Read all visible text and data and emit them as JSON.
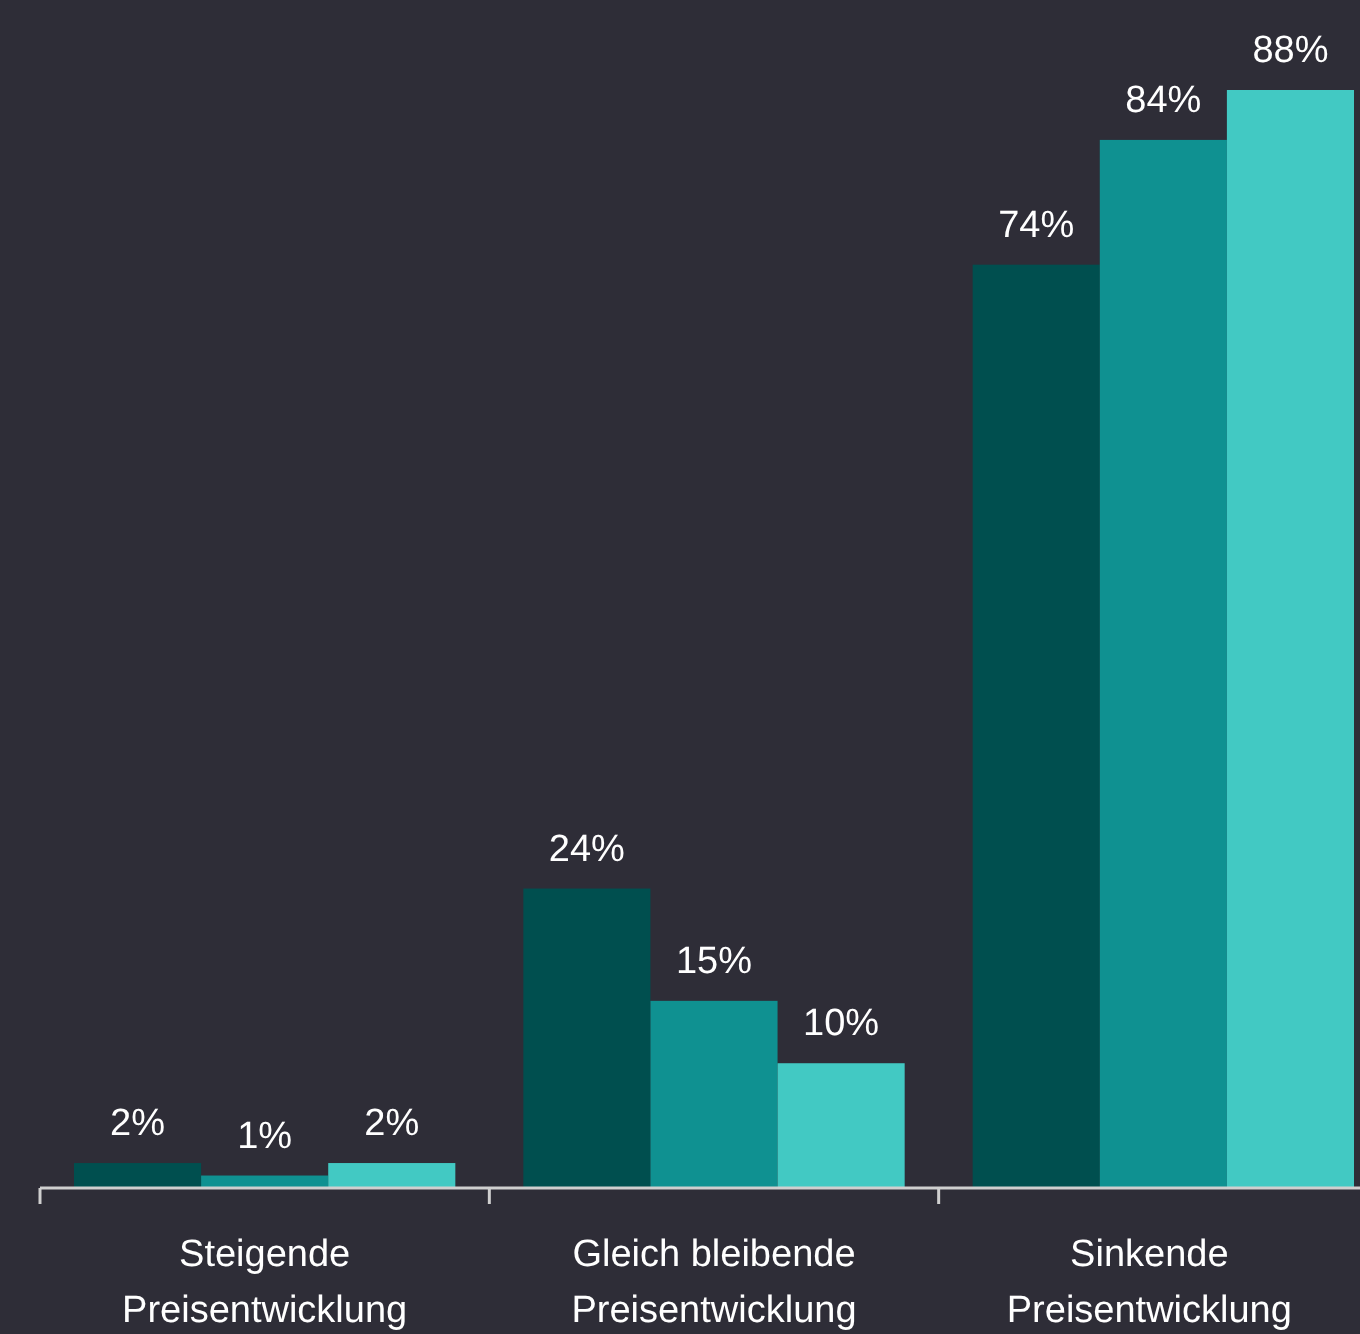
{
  "chart_data": {
    "type": "bar",
    "categories": [
      "Steigende Preisentwicklung",
      "Gleich bleibende Preisentwicklung",
      "Sinkende Preisentwicklung"
    ],
    "series": [
      {
        "color": "#004f4f",
        "values": [
          2,
          24,
          74
        ],
        "value_labels": [
          "2%",
          "24%",
          "74%"
        ]
      },
      {
        "color": "#0f9191",
        "values": [
          1,
          15,
          84
        ],
        "value_labels": [
          "1%",
          "15%",
          "84%"
        ]
      },
      {
        "color": "#42c9c3",
        "values": [
          2,
          10,
          88
        ],
        "value_labels": [
          "2%",
          "10%",
          "88%"
        ]
      }
    ]
  }
}
